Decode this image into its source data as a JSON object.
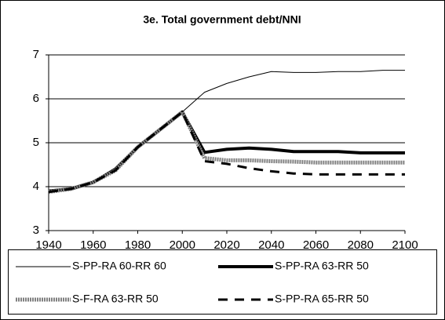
{
  "chart_data": {
    "type": "line",
    "title": "3e. Total government debt/NNI",
    "x": [
      1940,
      1950,
      1960,
      1970,
      1980,
      1990,
      2000,
      2010,
      2020,
      2030,
      2040,
      2050,
      2060,
      2070,
      2080,
      2090,
      2100
    ],
    "series": [
      {
        "name": "S-PP-RA 60-RR 60",
        "color": "#000000",
        "values": [
          3.9,
          3.95,
          4.1,
          4.4,
          4.9,
          5.3,
          5.7,
          6.15,
          6.35,
          6.5,
          6.62,
          6.6,
          6.6,
          6.62,
          6.62,
          6.65,
          6.65
        ]
      },
      {
        "name": "S-PP-RA 63-RR 50",
        "color": "#000000",
        "values": [
          3.9,
          3.95,
          4.1,
          4.4,
          4.9,
          5.3,
          5.7,
          4.78,
          4.85,
          4.88,
          4.85,
          4.8,
          4.8,
          4.8,
          4.77,
          4.77,
          4.77
        ]
      },
      {
        "name": "S-F-RA 63-RR 50",
        "color": "#808080",
        "values": [
          3.88,
          3.95,
          4.1,
          4.37,
          4.9,
          5.3,
          5.7,
          4.65,
          4.6,
          4.6,
          4.58,
          4.57,
          4.55,
          4.55,
          4.55,
          4.55,
          4.55
        ]
      },
      {
        "name": "S-PP-RA 65-RR 50",
        "color": "#000000",
        "values": [
          3.88,
          3.95,
          4.1,
          4.37,
          4.9,
          5.3,
          5.7,
          4.58,
          4.52,
          4.42,
          4.35,
          4.3,
          4.28,
          4.28,
          4.28,
          4.28,
          4.28
        ]
      }
    ],
    "xlim": [
      1940,
      2100
    ],
    "xticks": [
      1940,
      1960,
      1980,
      2000,
      2020,
      2040,
      2060,
      2080,
      2100
    ],
    "ylim": [
      3,
      7
    ],
    "yticks": [
      3,
      4,
      5,
      6,
      7
    ],
    "grid": true
  }
}
